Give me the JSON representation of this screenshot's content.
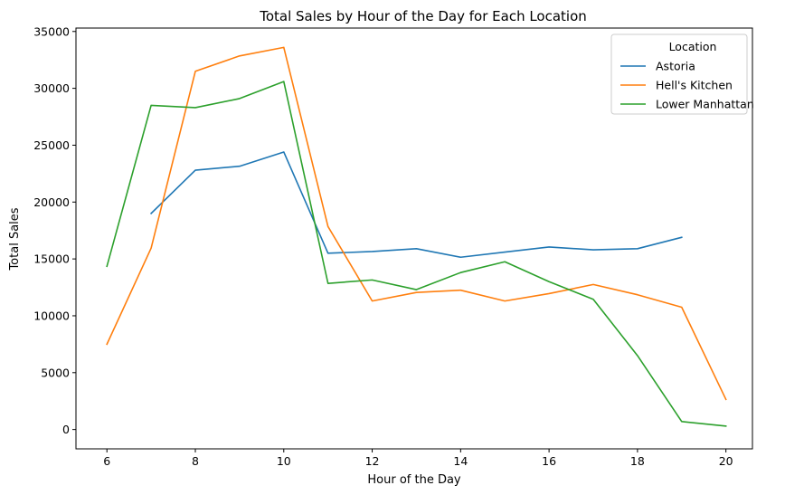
{
  "chart_data": {
    "type": "line",
    "title": "Total Sales by Hour of the Day for Each Location",
    "xlabel": "Hour of the Day",
    "ylabel": "Total Sales",
    "xlim": [
      5.3,
      20.6
    ],
    "ylim": [
      -1700,
      35300
    ],
    "xticks": [
      6,
      8,
      10,
      12,
      14,
      16,
      18,
      20
    ],
    "yticks": [
      0,
      5000,
      10000,
      15000,
      20000,
      25000,
      30000,
      35000
    ],
    "grid": false,
    "legend": {
      "title": "Location",
      "placement": "top-right"
    },
    "series": [
      {
        "name": "Astoria",
        "color": "#1f77b4",
        "x": [
          7,
          8,
          9,
          10,
          11,
          12,
          13,
          14,
          15,
          16,
          17,
          18,
          19
        ],
        "values": [
          19000,
          22800,
          23150,
          24400,
          15500,
          15650,
          15900,
          15150,
          15600,
          16050,
          15800,
          15900,
          16900
        ]
      },
      {
        "name": "Hell's Kitchen",
        "color": "#ff7f0e",
        "x": [
          6,
          7,
          8,
          9,
          10,
          11,
          12,
          13,
          14,
          15,
          16,
          17,
          18,
          19,
          20
        ],
        "values": [
          7500,
          15950,
          31500,
          32850,
          33600,
          17850,
          11300,
          12050,
          12250,
          11300,
          11950,
          12750,
          11850,
          10750,
          2650
        ]
      },
      {
        "name": "Lower Manhattan",
        "color": "#2ca02c",
        "x": [
          6,
          7,
          8,
          9,
          10,
          11,
          12,
          13,
          14,
          15,
          16,
          17,
          18,
          19,
          20
        ],
        "values": [
          14350,
          28500,
          28300,
          29100,
          30600,
          12850,
          13150,
          12300,
          13800,
          14750,
          13000,
          11450,
          6500,
          700,
          300
        ]
      }
    ]
  }
}
